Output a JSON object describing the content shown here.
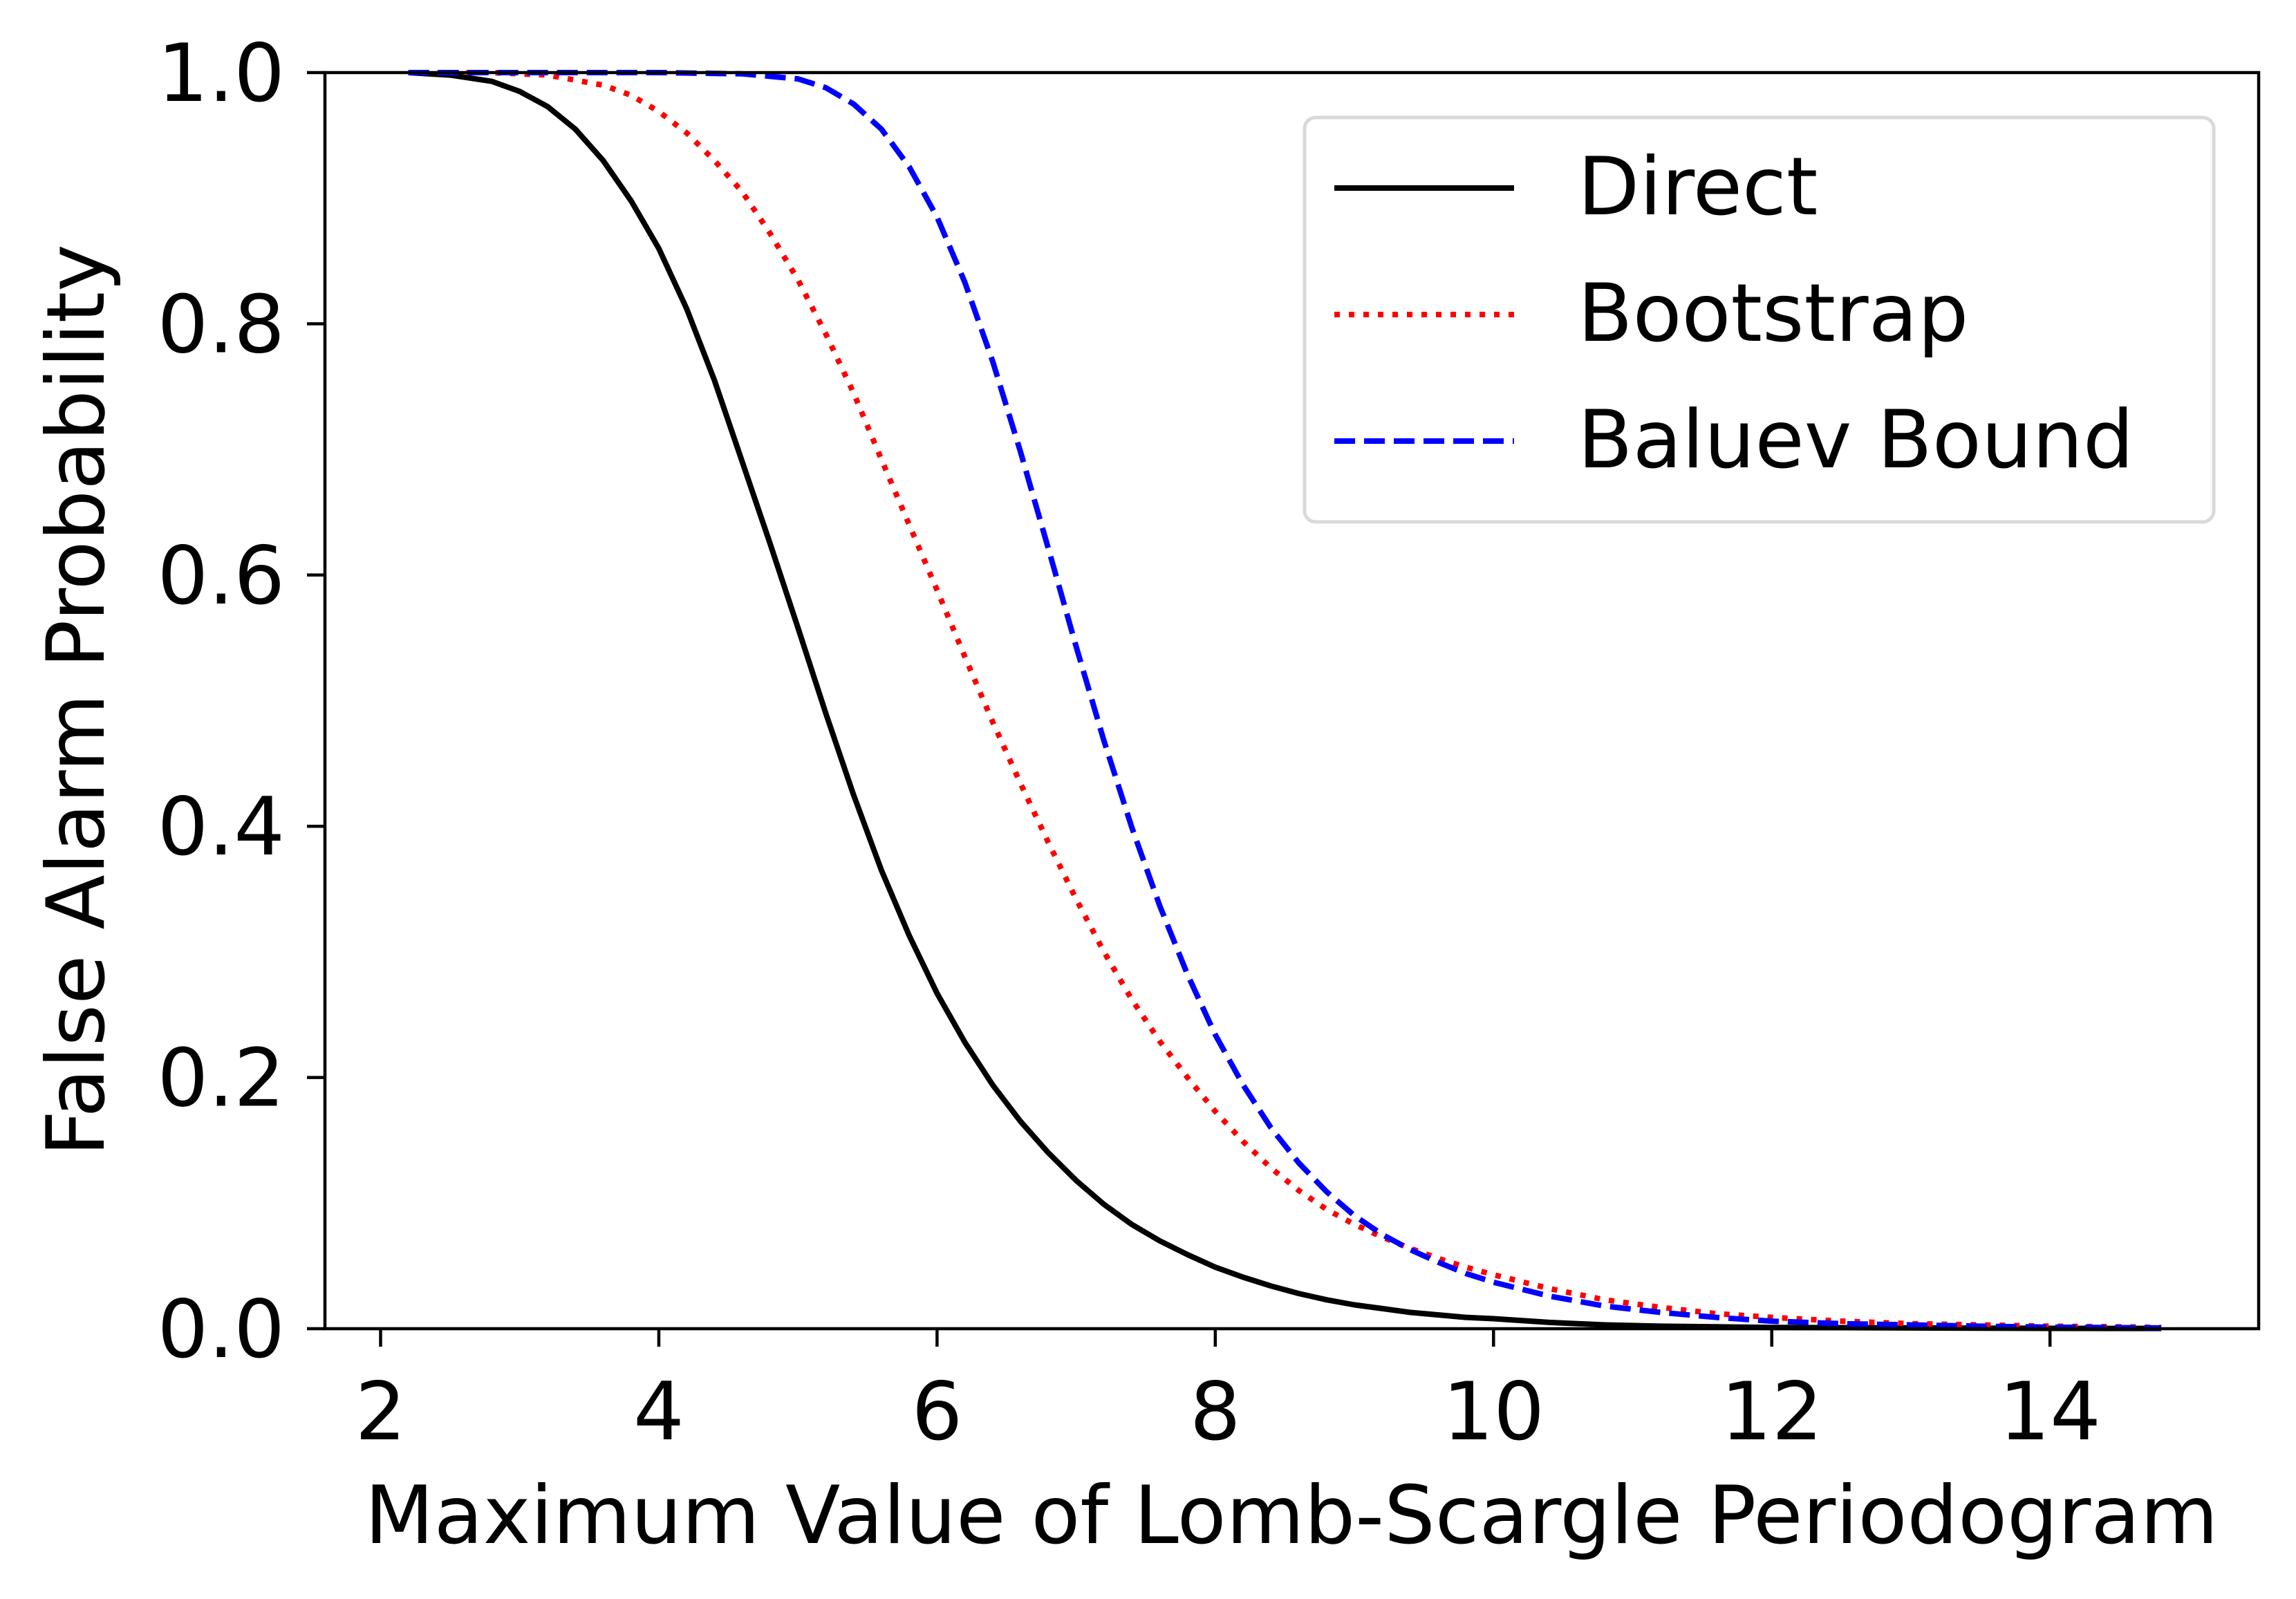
{
  "chart_data": {
    "type": "line",
    "title": "",
    "xlabel": "Maximum Value of Lomb-Scargle Periodogram",
    "ylabel": "False Alarm Probability",
    "xlim": [
      1.6,
      15.5
    ],
    "ylim": [
      0.0,
      1.0
    ],
    "xticks": [
      2,
      4,
      6,
      8,
      10,
      12,
      14
    ],
    "xtick_labels": [
      "2",
      "4",
      "6",
      "8",
      "10",
      "12",
      "14"
    ],
    "yticks": [
      0.0,
      0.2,
      0.4,
      0.6,
      0.8,
      1.0
    ],
    "ytick_labels": [
      "0.0",
      "0.2",
      "0.4",
      "0.6",
      "0.8",
      "1.0"
    ],
    "grid": false,
    "legend_position": "top-right",
    "series": [
      {
        "name": "Direct",
        "color": "#000000",
        "style": "solid",
        "x": [
          2.2,
          2.5,
          2.8,
          3.0,
          3.2,
          3.4,
          3.6,
          3.8,
          4.0,
          4.2,
          4.4,
          4.6,
          4.8,
          5.0,
          5.2,
          5.4,
          5.6,
          5.8,
          6.0,
          6.2,
          6.4,
          6.6,
          6.8,
          7.0,
          7.2,
          7.4,
          7.6,
          7.8,
          8.0,
          8.2,
          8.4,
          8.6,
          8.8,
          9.0,
          9.2,
          9.4,
          9.6,
          9.8,
          10.0,
          10.4,
          10.8,
          11.2,
          11.6,
          12.0,
          12.5,
          13.0,
          13.5,
          14.0,
          14.5,
          14.8
        ],
        "y": [
          1.0,
          0.998,
          0.993,
          0.985,
          0.973,
          0.955,
          0.93,
          0.898,
          0.86,
          0.812,
          0.755,
          0.69,
          0.625,
          0.558,
          0.49,
          0.425,
          0.365,
          0.313,
          0.267,
          0.228,
          0.194,
          0.165,
          0.14,
          0.118,
          0.099,
          0.083,
          0.07,
          0.059,
          0.049,
          0.041,
          0.034,
          0.028,
          0.023,
          0.019,
          0.016,
          0.013,
          0.011,
          0.009,
          0.008,
          0.005,
          0.003,
          0.002,
          0.0015,
          0.001,
          0.0008,
          0.0006,
          0.0004,
          0.0003,
          0.0002,
          0.0002
        ]
      },
      {
        "name": "Bootstrap",
        "color": "#ff0000",
        "style": "dotted",
        "x": [
          2.2,
          2.8,
          3.2,
          3.6,
          3.8,
          4.0,
          4.2,
          4.4,
          4.6,
          4.8,
          5.0,
          5.2,
          5.4,
          5.6,
          5.8,
          6.0,
          6.2,
          6.4,
          6.6,
          6.8,
          7.0,
          7.2,
          7.4,
          7.6,
          7.8,
          8.0,
          8.2,
          8.4,
          8.6,
          8.8,
          9.0,
          9.2,
          9.4,
          9.6,
          9.8,
          10.0,
          10.4,
          10.8,
          11.2,
          11.6,
          12.0,
          12.5,
          13.0,
          13.5,
          14.0,
          14.5,
          14.8
        ],
        "y": [
          1.0,
          1.0,
          0.998,
          0.99,
          0.982,
          0.969,
          0.952,
          0.93,
          0.905,
          0.872,
          0.835,
          0.792,
          0.745,
          0.692,
          0.64,
          0.588,
          0.535,
          0.483,
          0.434,
          0.387,
          0.342,
          0.3,
          0.262,
          0.229,
          0.2,
          0.173,
          0.149,
          0.128,
          0.11,
          0.095,
          0.083,
          0.073,
          0.064,
          0.056,
          0.049,
          0.043,
          0.032,
          0.023,
          0.017,
          0.012,
          0.009,
          0.006,
          0.004,
          0.003,
          0.002,
          0.0015,
          0.001
        ]
      },
      {
        "name": "Baluev Bound",
        "color": "#0000ff",
        "style": "dashed",
        "x": [
          2.2,
          3.0,
          4.0,
          4.6,
          5.0,
          5.2,
          5.4,
          5.6,
          5.8,
          6.0,
          6.2,
          6.4,
          6.6,
          6.8,
          7.0,
          7.2,
          7.4,
          7.6,
          7.8,
          8.0,
          8.2,
          8.4,
          8.6,
          8.8,
          9.0,
          9.2,
          9.4,
          9.6,
          9.8,
          10.0,
          10.4,
          10.8,
          11.2,
          11.6,
          12.0,
          12.5,
          13.0,
          13.5,
          14.0,
          14.5,
          14.8
        ],
        "y": [
          1.0,
          1.0,
          1.0,
          0.999,
          0.995,
          0.988,
          0.975,
          0.955,
          0.925,
          0.885,
          0.833,
          0.77,
          0.698,
          0.621,
          0.543,
          0.468,
          0.399,
          0.337,
          0.282,
          0.234,
          0.194,
          0.16,
          0.132,
          0.109,
          0.09,
          0.075,
          0.063,
          0.053,
          0.044,
          0.037,
          0.026,
          0.018,
          0.013,
          0.009,
          0.006,
          0.004,
          0.003,
          0.002,
          0.0012,
          0.0008,
          0.0006
        ]
      }
    ]
  }
}
